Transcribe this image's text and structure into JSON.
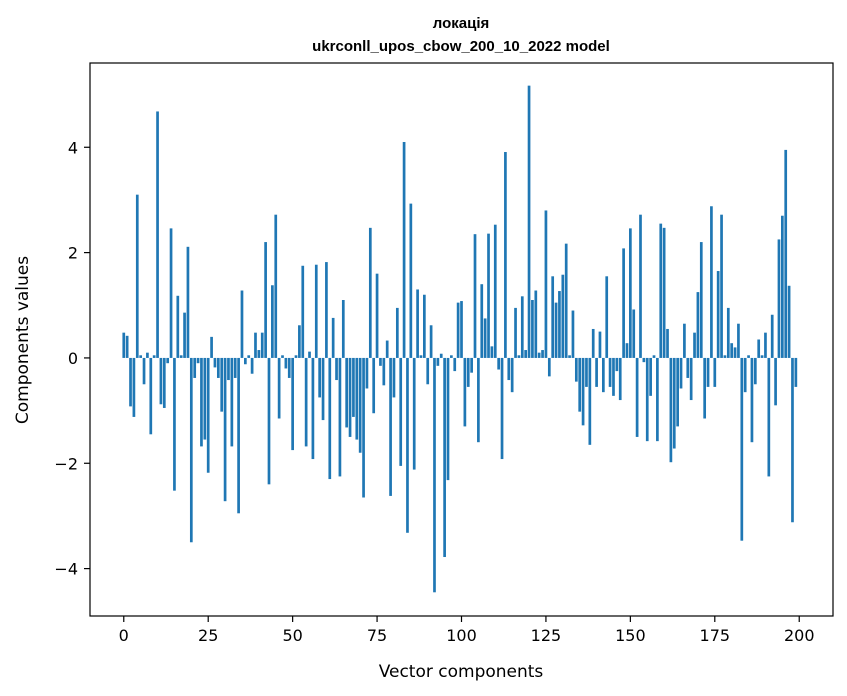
{
  "chart_data": {
    "type": "bar",
    "title": "локація",
    "subtitle": "ukrconll_upos_cbow_200_10_2022 model",
    "xlabel": "Vector components",
    "ylabel": "Components values",
    "xlim": [
      -10,
      210
    ],
    "ylim": [
      -4.9,
      5.6
    ],
    "xticks": [
      0,
      25,
      50,
      75,
      100,
      125,
      150,
      175,
      200
    ],
    "yticks": [
      -4,
      -2,
      0,
      2,
      4
    ],
    "ytick_labels": [
      "−4",
      "−2",
      "0",
      "2",
      "4"
    ],
    "grid": false,
    "legend": "none",
    "bar_color": "#1f77b4",
    "x": [
      0,
      1,
      2,
      3,
      4,
      5,
      6,
      7,
      8,
      9,
      10,
      11,
      12,
      13,
      14,
      15,
      16,
      17,
      18,
      19,
      20,
      21,
      22,
      23,
      24,
      25,
      26,
      27,
      28,
      29,
      30,
      31,
      32,
      33,
      34,
      35,
      36,
      37,
      38,
      39,
      40,
      41,
      42,
      43,
      44,
      45,
      46,
      47,
      48,
      49,
      50,
      51,
      52,
      53,
      54,
      55,
      56,
      57,
      58,
      59,
      60,
      61,
      62,
      63,
      64,
      65,
      66,
      67,
      68,
      69,
      70,
      71,
      72,
      73,
      74,
      75,
      76,
      77,
      78,
      79,
      80,
      81,
      82,
      83,
      84,
      85,
      86,
      87,
      88,
      89,
      90,
      91,
      92,
      93,
      94,
      95,
      96,
      97,
      98,
      99,
      100,
      101,
      102,
      103,
      104,
      105,
      106,
      107,
      108,
      109,
      110,
      111,
      112,
      113,
      114,
      115,
      116,
      117,
      118,
      119,
      120,
      121,
      122,
      123,
      124,
      125,
      126,
      127,
      128,
      129,
      130,
      131,
      132,
      133,
      134,
      135,
      136,
      137,
      138,
      139,
      140,
      141,
      142,
      143,
      144,
      145,
      146,
      147,
      148,
      149,
      150,
      151,
      152,
      153,
      154,
      155,
      156,
      157,
      158,
      159,
      160,
      161,
      162,
      163,
      164,
      165,
      166,
      167,
      168,
      169,
      170,
      171,
      172,
      173,
      174,
      175,
      176,
      177,
      178,
      179,
      180,
      181,
      182,
      183,
      184,
      185,
      186,
      187,
      188,
      189,
      190,
      191,
      192,
      193,
      194,
      195,
      196,
      197,
      198,
      199
    ],
    "values": [
      0.48,
      0.42,
      -0.92,
      -1.12,
      3.1,
      0.05,
      -0.5,
      0.1,
      -1.45,
      0.05,
      4.68,
      -0.88,
      -0.95,
      -0.1,
      2.46,
      -2.52,
      1.18,
      0.05,
      0.86,
      2.11,
      -3.5,
      -0.38,
      -0.1,
      -1.68,
      -1.55,
      -2.18,
      0.4,
      -0.18,
      -0.38,
      -1.02,
      -2.72,
      -0.42,
      -1.68,
      -0.38,
      -2.95,
      1.28,
      -0.12,
      0.05,
      -0.3,
      0.48,
      0.15,
      0.48,
      2.2,
      -2.4,
      1.38,
      2.72,
      -1.15,
      0.05,
      -0.2,
      -0.38,
      -1.75,
      0.05,
      0.62,
      1.75,
      -1.68,
      0.12,
      -1.92,
      1.77,
      -0.75,
      -1.18,
      1.82,
      -2.3,
      0.76,
      -0.42,
      -2.25,
      1.1,
      -1.32,
      -1.5,
      -1.12,
      -1.55,
      -1.8,
      -2.65,
      -0.58,
      2.47,
      -1.05,
      1.6,
      -0.15,
      -0.52,
      0.33,
      -2.62,
      -0.75,
      0.95,
      -2.05,
      4.1,
      -3.32,
      2.93,
      -2.12,
      1.3,
      0.05,
      1.2,
      -0.5,
      0.62,
      -4.45,
      -0.15,
      0.08,
      -3.78,
      -2.32,
      0.05,
      -0.25,
      1.05,
      1.08,
      -1.3,
      -0.55,
      -0.28,
      2.35,
      -1.6,
      1.4,
      0.75,
      2.36,
      0.22,
      2.53,
      -0.22,
      -1.92,
      3.91,
      -0.42,
      -0.65,
      0.95,
      0.05,
      1.17,
      0.15,
      5.17,
      1.1,
      1.28,
      0.1,
      0.15,
      2.8,
      -0.35,
      1.55,
      1.05,
      1.27,
      1.58,
      2.17,
      0.05,
      0.9,
      -0.45,
      -1.02,
      -1.28,
      -0.55,
      -1.65,
      0.55,
      -0.55,
      0.5,
      -0.65,
      1.55,
      -0.55,
      -0.72,
      -0.25,
      -0.8,
      2.08,
      0.28,
      2.46,
      0.92,
      -1.5,
      2.72,
      -0.08,
      -1.58,
      -0.72,
      0.05,
      -1.58,
      2.55,
      2.47,
      0.55,
      -1.98,
      -1.72,
      -1.3,
      -0.58,
      0.65,
      -0.38,
      -0.8,
      0.48,
      1.25,
      2.2,
      -1.15,
      -0.55,
      2.88,
      -0.55,
      1.65,
      2.72,
      0.05,
      0.95,
      0.28,
      0.2,
      0.65,
      -3.47,
      -0.65,
      0.05,
      -1.6,
      -0.5,
      0.35,
      0.05,
      0.48,
      -2.25,
      0.82,
      -0.9,
      2.25,
      2.7,
      3.95,
      1.37,
      -3.12,
      -0.55
    ]
  }
}
